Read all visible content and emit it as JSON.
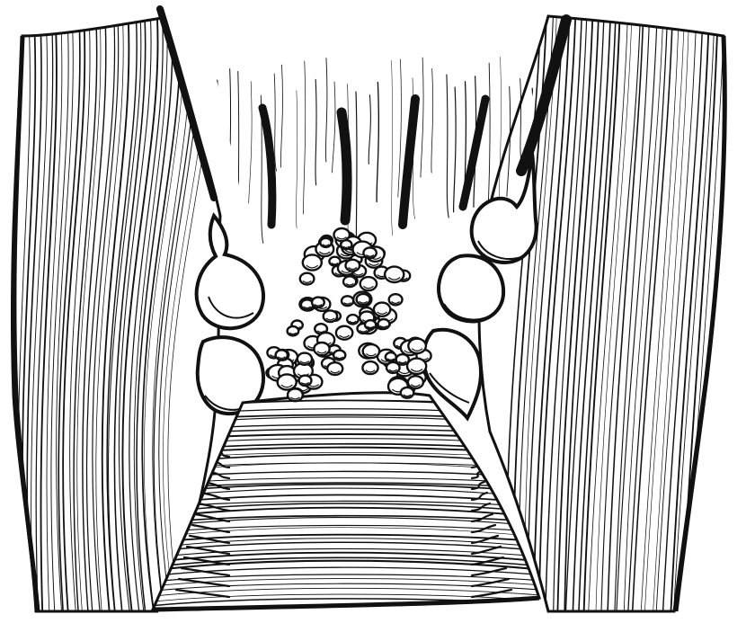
{
  "illustration": {
    "subject": "anatomical-engraving",
    "ink_color": "#111111",
    "paper_color": "#ffffff",
    "style": "black-and-white line engraving"
  }
}
